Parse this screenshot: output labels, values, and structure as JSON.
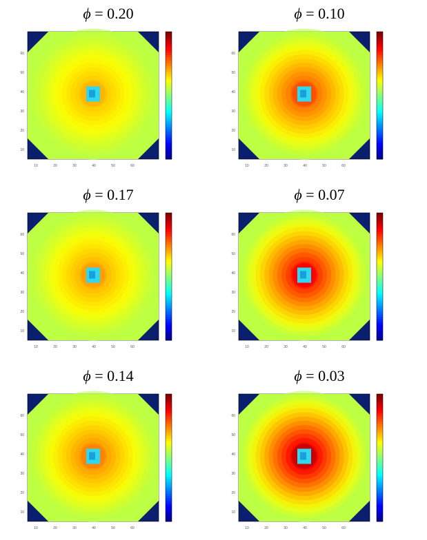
{
  "chart_data": [
    {
      "type": "heatmap",
      "title_symbol": "ϕ",
      "title_value": "= 0.20",
      "colormap": "jet",
      "ticks": [
        "10",
        "20",
        "30",
        "40",
        "50",
        "60"
      ]
    },
    {
      "type": "heatmap",
      "title_symbol": "ϕ",
      "title_value": "= 0.10",
      "colormap": "jet",
      "ticks": [
        "10",
        "20",
        "30",
        "40",
        "50",
        "60"
      ]
    },
    {
      "type": "heatmap",
      "title_symbol": "ϕ",
      "title_value": "= 0.17",
      "colormap": "jet",
      "ticks": [
        "10",
        "20",
        "30",
        "40",
        "50",
        "60"
      ]
    },
    {
      "type": "heatmap",
      "title_symbol": "ϕ",
      "title_value": "= 0.07",
      "colormap": "jet",
      "ticks": [
        "10",
        "20",
        "30",
        "40",
        "50",
        "60"
      ]
    },
    {
      "type": "heatmap",
      "title_symbol": "ϕ",
      "title_value": "= 0.14",
      "colormap": "jet",
      "ticks": [
        "10",
        "20",
        "30",
        "40",
        "50",
        "60"
      ]
    },
    {
      "type": "heatmap",
      "title_symbol": "ϕ",
      "title_value": "= 0.03",
      "colormap": "jet",
      "ticks": [
        "10",
        "20",
        "30",
        "40",
        "50",
        "60"
      ]
    }
  ]
}
